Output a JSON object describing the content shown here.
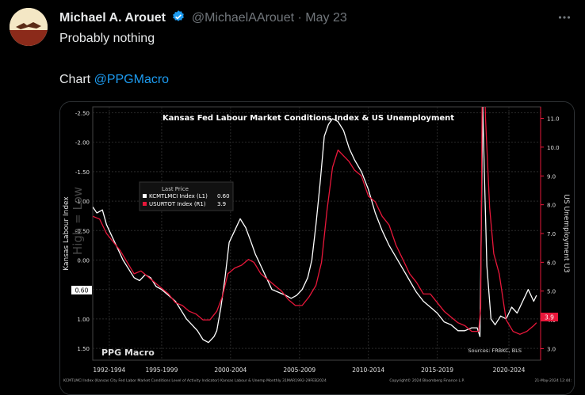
{
  "tweet": {
    "author_name": "Michael A. Arouet",
    "handle": "@MichaelAArouet",
    "separator": "·",
    "date": "May 23",
    "text_line1": "Probably nothing",
    "text_line2_prefix": "Chart ",
    "text_line2_mention": "@PPGMacro"
  },
  "icons": {
    "verified": "verified-badge-icon",
    "more": "more-options-icon"
  },
  "colors": {
    "accent": "#1d9bf0",
    "white_series": "#ffffff",
    "red_series": "#e8173a"
  },
  "chart_data": {
    "type": "line",
    "title": "Kansas Fed Labour Market Conditions Index & US Unemployment",
    "left_axis_label": "Kansas Labour Index",
    "left_axis_watermark": "High = Low",
    "right_axis_label": "US Unemployment U3",
    "left_ticks": [
      "-2.50",
      "-2.00",
      "-1.50",
      "-1.00",
      "-0.50",
      "0.00",
      "0.50",
      "1.00",
      "1.50"
    ],
    "left_axis_inverted": true,
    "ylim_left": [
      -2.6,
      1.7
    ],
    "right_ticks": [
      "11.0",
      "10.0",
      "9.0",
      "8.0",
      "7.0",
      "6.0",
      "5.0",
      "4.0",
      "3.0"
    ],
    "ylim_right": [
      2.6,
      11.4
    ],
    "x_labels": [
      "1992-1994",
      "1995-1999",
      "2000-2004",
      "2005-2009",
      "2010-2014",
      "2015-2019",
      "2020-2024"
    ],
    "xlim": [
      1992.0,
      2024.5
    ],
    "legend_title": "Last Price",
    "legend": [
      {
        "name": "KCMTLMCI Index (L1)",
        "last": "0.60",
        "color": "#ffffff"
      },
      {
        "name": "USURTOT Index (R1)",
        "last": "3.9",
        "color": "#e8173a"
      }
    ],
    "last_value_left": "0.60",
    "last_value_right": "3.9",
    "watermark": "PPG Macro",
    "sources": "Sources: FRBKC, BLS",
    "footer_left": "KCMTLMCI Index (Kansas City Fed Labor Market Conditions Level of Activity Indicator) Kansas Labour & Unemp Monthly 31MAR1992-29FEB2024",
    "footer_right": "Copyright© 2024 Bloomberg Finance L.P.",
    "footer_date": "21-May-2024 12:44:",
    "series": [
      {
        "name": "KCMTLMCI Index (L1)",
        "axis": "left",
        "color": "#ffffff",
        "x": [
          1992.0,
          1992.3,
          1992.7,
          1993.0,
          1993.4,
          1993.8,
          1994.2,
          1994.6,
          1995.0,
          1995.4,
          1995.8,
          1996.2,
          1996.6,
          1997.0,
          1997.5,
          1998.0,
          1998.4,
          1998.8,
          1999.2,
          1999.6,
          2000.0,
          2000.4,
          2000.8,
          2001.0,
          2001.3,
          2001.6,
          2001.9,
          2002.3,
          2002.7,
          2003.1,
          2003.5,
          2003.8,
          2004.2,
          2004.6,
          2005.0,
          2005.5,
          2006.0,
          2006.4,
          2006.8,
          2007.2,
          2007.6,
          2007.9,
          2008.2,
          2008.5,
          2008.8,
          2009.1,
          2009.4,
          2009.8,
          2010.2,
          2010.6,
          2011.0,
          2011.5,
          2012.0,
          2012.5,
          2013.0,
          2013.5,
          2014.0,
          2014.5,
          2015.0,
          2015.5,
          2016.0,
          2016.5,
          2017.0,
          2017.5,
          2018.0,
          2018.5,
          2019.0,
          2019.5,
          2019.9,
          2020.1,
          2020.3,
          2020.45,
          2020.6,
          2020.9,
          2021.2,
          2021.6,
          2022.0,
          2022.4,
          2022.8,
          2023.2,
          2023.6,
          2024.0,
          2024.2
        ],
        "y": [
          -0.9,
          -0.8,
          -0.85,
          -0.6,
          -0.4,
          -0.2,
          0.0,
          0.15,
          0.3,
          0.35,
          0.25,
          0.3,
          0.45,
          0.5,
          0.6,
          0.7,
          0.85,
          1.0,
          1.1,
          1.2,
          1.35,
          1.4,
          1.3,
          1.2,
          0.8,
          0.3,
          -0.3,
          -0.5,
          -0.7,
          -0.55,
          -0.3,
          -0.1,
          0.1,
          0.3,
          0.5,
          0.55,
          0.6,
          0.65,
          0.6,
          0.5,
          0.3,
          0.0,
          -0.6,
          -1.3,
          -2.1,
          -2.3,
          -2.4,
          -2.35,
          -2.2,
          -1.9,
          -1.7,
          -1.5,
          -1.2,
          -0.8,
          -0.5,
          -0.25,
          -0.05,
          0.15,
          0.35,
          0.55,
          0.7,
          0.8,
          0.9,
          1.05,
          1.1,
          1.2,
          1.2,
          1.15,
          1.15,
          1.3,
          -2.6,
          -1.2,
          0.1,
          1.0,
          1.1,
          0.95,
          1.0,
          0.8,
          0.9,
          0.7,
          0.5,
          0.7,
          0.6
        ]
      },
      {
        "name": "USURTOT Index (R1)",
        "axis": "right",
        "color": "#e8173a",
        "x": [
          1992.0,
          1992.5,
          1993.0,
          1993.5,
          1994.0,
          1994.5,
          1995.0,
          1995.5,
          1996.0,
          1996.5,
          1997.0,
          1997.5,
          1998.0,
          1998.5,
          1999.0,
          1999.5,
          2000.0,
          2000.5,
          2001.0,
          2001.4,
          2001.8,
          2002.3,
          2002.8,
          2003.3,
          2003.7,
          2004.2,
          2004.7,
          2005.2,
          2005.7,
          2006.2,
          2006.7,
          2007.2,
          2007.7,
          2008.2,
          2008.6,
          2009.0,
          2009.4,
          2009.8,
          2010.2,
          2010.6,
          2011.0,
          2011.5,
          2012.0,
          2012.5,
          2013.0,
          2013.5,
          2014.0,
          2014.5,
          2015.0,
          2015.5,
          2016.0,
          2016.5,
          2017.0,
          2017.5,
          2018.0,
          2018.5,
          2019.0,
          2019.5,
          2020.0,
          2020.15,
          2020.3,
          2020.5,
          2020.8,
          2021.1,
          2021.5,
          2022.0,
          2022.5,
          2023.0,
          2023.5,
          2024.0,
          2024.2
        ],
        "y": [
          7.6,
          7.5,
          7.0,
          6.7,
          6.4,
          6.0,
          5.6,
          5.7,
          5.5,
          5.3,
          5.1,
          4.9,
          4.6,
          4.5,
          4.3,
          4.2,
          4.0,
          4.0,
          4.3,
          4.8,
          5.6,
          5.8,
          5.9,
          6.1,
          6.0,
          5.6,
          5.4,
          5.2,
          5.0,
          4.7,
          4.5,
          4.5,
          4.8,
          5.2,
          6.0,
          7.8,
          9.3,
          9.9,
          9.7,
          9.5,
          9.2,
          9.0,
          8.3,
          8.1,
          7.6,
          7.3,
          6.6,
          6.1,
          5.6,
          5.3,
          4.9,
          4.9,
          4.6,
          4.3,
          4.1,
          3.9,
          3.8,
          3.6,
          3.6,
          4.4,
          14.7,
          11.0,
          7.9,
          6.3,
          5.6,
          4.0,
          3.6,
          3.5,
          3.6,
          3.8,
          3.9
        ]
      }
    ]
  }
}
